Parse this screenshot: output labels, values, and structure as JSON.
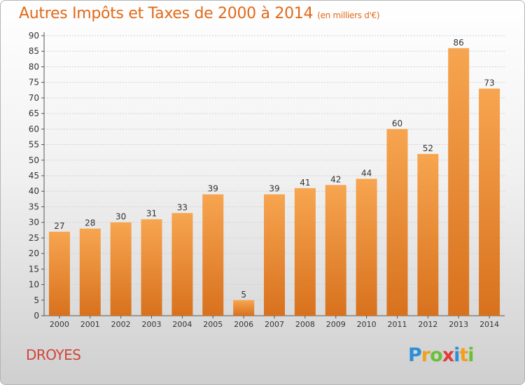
{
  "title": "Autres Impôts et Taxes de 2000 à 2014",
  "unit": "(en milliers d'€)",
  "commune": "DROYES",
  "logo_text": "Proxiti",
  "colors": {
    "bar_light": "#f7a550",
    "bar_dark": "#d8711d",
    "title": "#e06a1a",
    "commune": "#d0453a"
  },
  "chart_data": {
    "type": "bar",
    "title": "Autres Impôts et Taxes de 2000 à 2014",
    "subtitle": "(en milliers d'€)",
    "categories": [
      "2000",
      "2001",
      "2002",
      "2003",
      "2004",
      "2005",
      "2006",
      "2007",
      "2008",
      "2009",
      "2010",
      "2011",
      "2012",
      "2013",
      "2014"
    ],
    "values": [
      27,
      28,
      30,
      31,
      33,
      39,
      5,
      39,
      41,
      42,
      44,
      60,
      52,
      86,
      73
    ],
    "xlabel": "",
    "ylabel": "",
    "ylim": [
      0,
      90
    ],
    "yticks": [
      0,
      5,
      10,
      15,
      20,
      25,
      30,
      35,
      40,
      45,
      50,
      55,
      60,
      65,
      70,
      75,
      80,
      85,
      90
    ],
    "grid": true,
    "legend": "none"
  }
}
